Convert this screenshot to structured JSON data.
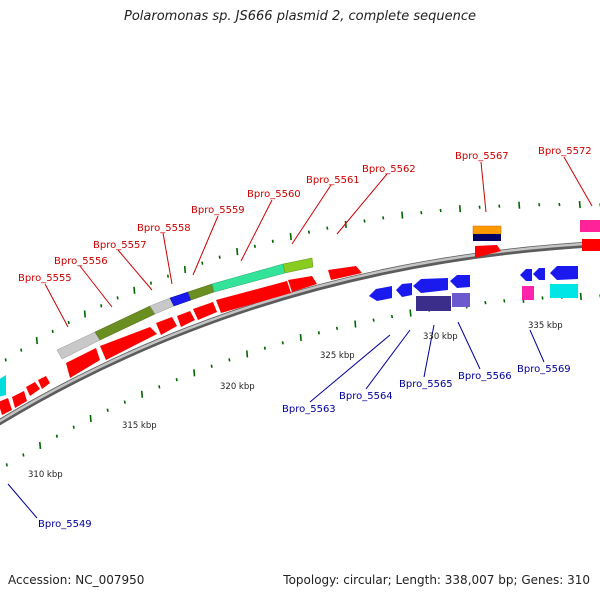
{
  "title": "Polaromonas sp. JS666 plasmid 2, complete sequence",
  "footer": {
    "accession": "Accession: NC_007950",
    "summary": "Topology: circular; Length: 338,007 bp; Genes: 310"
  },
  "colors": {
    "forward_label": "#cc0000",
    "reverse_label": "#000099",
    "forward_gene": "#ff0000",
    "reverse_gene": "#1a1aee",
    "backbone": "#888888",
    "tick": "#006600"
  },
  "scale_labels": [
    "310 kbp",
    "315 kbp",
    "320 kbp",
    "325 kbp",
    "330 kbp",
    "335 kbp"
  ],
  "gene_labels_forward": [
    "Bpro_5555",
    "Bpro_5556",
    "Bpro_5557",
    "Bpro_5558",
    "Bpro_5559",
    "Bpro_5560",
    "Bpro_5561",
    "Bpro_5562",
    "Bpro_5567",
    "Bpro_5572"
  ],
  "gene_labels_reverse": [
    "Bpro_5563",
    "Bpro_5564",
    "Bpro_5565",
    "Bpro_5566",
    "Bpro_5569",
    "Bpro_5549"
  ]
}
